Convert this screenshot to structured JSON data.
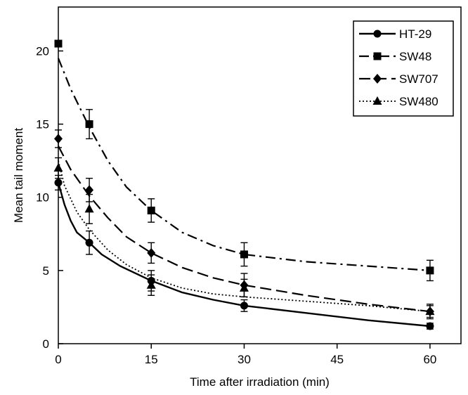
{
  "chart_data": {
    "type": "line",
    "xlabel": "Time after irradiation (min)",
    "ylabel": "Mean tail moment",
    "xlim": [
      0,
      65
    ],
    "ylim": [
      0,
      23
    ],
    "xticks": [
      0,
      15,
      30,
      45,
      60
    ],
    "yticks": [
      0,
      5,
      10,
      15,
      20
    ],
    "grid": false,
    "legend_position": "top-right",
    "series": [
      {
        "name": "HT-29",
        "marker": "circle",
        "dash": "solid",
        "x": [
          0,
          5,
          15,
          30,
          60
        ],
        "y": [
          11,
          6.9,
          4.3,
          2.6,
          1.2
        ],
        "err": [
          0.5,
          0.8,
          0.7,
          0.4,
          0.2
        ],
        "curve_x": [
          0,
          1,
          2,
          3,
          5,
          7,
          10,
          15,
          20,
          25,
          30,
          40,
          50,
          60
        ],
        "curve_y": [
          11,
          9.5,
          8.4,
          7.6,
          6.9,
          6.1,
          5.3,
          4.3,
          3.5,
          3.0,
          2.6,
          2.1,
          1.6,
          1.2
        ]
      },
      {
        "name": "SW48",
        "marker": "square",
        "dash": "dashdot",
        "x": [
          0,
          5,
          15,
          30,
          60
        ],
        "y": [
          20.5,
          15,
          9.1,
          6.1,
          5.0
        ],
        "err": [
          0,
          1.0,
          0.8,
          0.8,
          0.7
        ],
        "curve_x": [
          0,
          2,
          5,
          8,
          11,
          15,
          20,
          25,
          30,
          40,
          50,
          60
        ],
        "curve_y": [
          19.5,
          17.4,
          14.8,
          12.5,
          10.7,
          9.1,
          7.6,
          6.7,
          6.1,
          5.6,
          5.3,
          5.0
        ]
      },
      {
        "name": "SW707",
        "marker": "diamond",
        "dash": "longdash",
        "x": [
          0,
          5,
          15,
          30,
          60
        ],
        "y": [
          14,
          10.5,
          6.2,
          4.0,
          2.2
        ],
        "err": [
          0.6,
          0.8,
          0.7,
          0.8,
          0.5
        ],
        "curve_x": [
          0,
          2,
          5,
          8,
          11,
          15,
          20,
          25,
          30,
          40,
          50,
          60
        ],
        "curve_y": [
          13.5,
          11.9,
          10.1,
          8.6,
          7.3,
          6.2,
          5.2,
          4.5,
          4.0,
          3.3,
          2.7,
          2.2
        ]
      },
      {
        "name": "SW480",
        "marker": "triangle",
        "dash": "dotted",
        "x": [
          0,
          5,
          15,
          30,
          60
        ],
        "y": [
          12,
          9.2,
          4.0,
          3.8,
          2.2
        ],
        "err": [
          0.7,
          1.0,
          0.7,
          0.6,
          0.4
        ],
        "curve_x": [
          0,
          1,
          3,
          5,
          8,
          11,
          15,
          20,
          25,
          30,
          40,
          50,
          60
        ],
        "curve_y": [
          12.5,
          10.8,
          9.0,
          7.8,
          6.4,
          5.4,
          4.5,
          3.8,
          3.4,
          3.2,
          2.9,
          2.6,
          2.2
        ]
      }
    ]
  }
}
